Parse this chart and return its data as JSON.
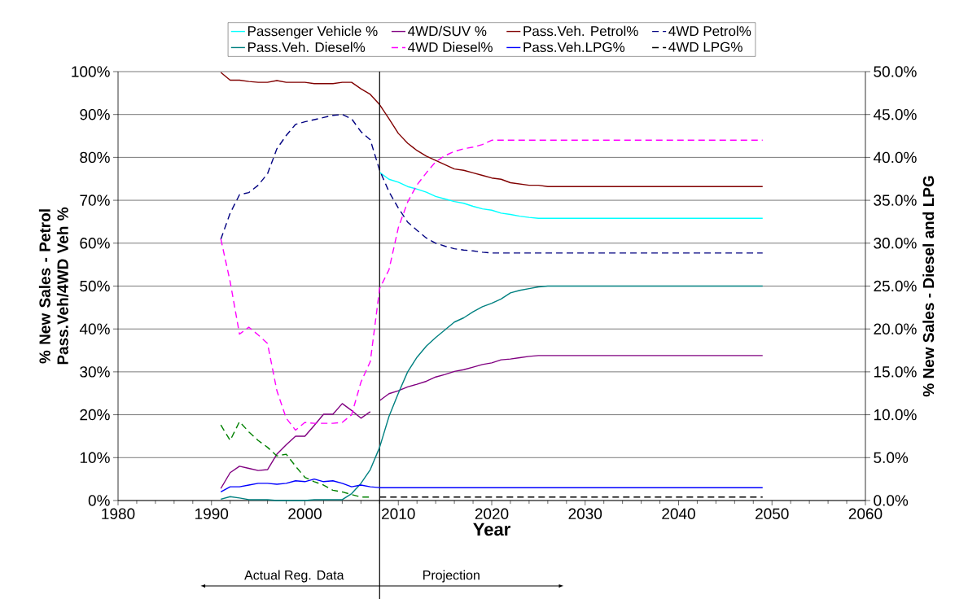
{
  "chart_data": {
    "type": "line",
    "xlabel": "Year",
    "ylabel": "% New Sales - Petrol Pass.Veh/4WD Veh %",
    "y2label": "% New Sales - Diesel and LPG",
    "xlim": [
      1980,
      2060
    ],
    "xticks": [
      1980,
      1990,
      2000,
      2010,
      2020,
      2030,
      2040,
      2050,
      2060
    ],
    "ylim": [
      0,
      100
    ],
    "yticks": [
      {
        "value": 0,
        "label": "0%"
      },
      {
        "value": 10,
        "label": "10%"
      },
      {
        "value": 20,
        "label": "20%"
      },
      {
        "value": 30,
        "label": "30%"
      },
      {
        "value": 40,
        "label": "40%"
      },
      {
        "value": 50,
        "label": "50%"
      },
      {
        "value": 60,
        "label": "60%"
      },
      {
        "value": 70,
        "label": "70%"
      },
      {
        "value": 80,
        "label": "80%"
      },
      {
        "value": 90,
        "label": "90%"
      },
      {
        "value": 100,
        "label": "100%"
      }
    ],
    "y2lim": [
      0,
      50
    ],
    "y2ticks": [
      {
        "value": 0,
        "label": "0.0%"
      },
      {
        "value": 5,
        "label": "5.0%"
      },
      {
        "value": 10,
        "label": "10.0%"
      },
      {
        "value": 15,
        "label": "15.0%"
      },
      {
        "value": 20,
        "label": "20.0%"
      },
      {
        "value": 25,
        "label": "25.0%"
      },
      {
        "value": 30,
        "label": "30.0%"
      },
      {
        "value": 35,
        "label": "35.0%"
      },
      {
        "value": 40,
        "label": "40.0%"
      },
      {
        "value": 45,
        "label": "45.0%"
      },
      {
        "value": 50,
        "label": "50.0%"
      }
    ],
    "grid": "y",
    "legend": "top",
    "marker": "none",
    "ref_lines": [
      {
        "axis": "x",
        "value": 2008,
        "color": "#000000"
      }
    ],
    "annotations": [
      "Actual Reg. Data",
      "Projection"
    ],
    "series": [
      {
        "name": "Passenger Vehicle %",
        "color": "#00ffff",
        "x": [
          2008,
          2009,
          2010,
          2011,
          2012,
          2013,
          2014,
          2015,
          2016,
          2017,
          2018,
          2019,
          2020,
          2021,
          2022,
          2023,
          2024,
          2025,
          2049
        ],
        "values": [
          76.5,
          74.9,
          74.2,
          73.2,
          72.6,
          71.9,
          70.9,
          70.3,
          69.7,
          69.3,
          68.6,
          68.0,
          67.7,
          67.0,
          66.7,
          66.3,
          66.0,
          65.8,
          65.8
        ]
      },
      {
        "name": "4WD/SUV %",
        "color": "#800080",
        "x": [
          2008,
          2009,
          2010,
          2011,
          2012,
          2013,
          2014,
          2015,
          2016,
          2017,
          2018,
          2019,
          2020,
          2021,
          2022,
          2023,
          2024,
          2025,
          2049
        ],
        "values": [
          23.3,
          24.9,
          25.6,
          26.5,
          27.1,
          27.8,
          28.8,
          29.4,
          30.1,
          30.5,
          31.1,
          31.7,
          32.1,
          32.8,
          33.0,
          33.3,
          33.6,
          33.8,
          33.8
        ]
      },
      {
        "name": "Pass.Veh. Petrol%",
        "color": "#800000",
        "x": [
          1991,
          1992,
          1993,
          1994,
          1995,
          1996,
          1997,
          1998,
          1999,
          2000,
          2001,
          2002,
          2003,
          2004,
          2005,
          2006,
          2007,
          2008,
          2009,
          2010,
          2011,
          2012,
          2013,
          2014,
          2015,
          2016,
          2017,
          2018,
          2019,
          2020,
          2021,
          2022,
          2023,
          2024,
          2025,
          2026,
          2049
        ],
        "values": [
          99.8,
          98.0,
          98.0,
          97.7,
          97.5,
          97.5,
          97.9,
          97.5,
          97.5,
          97.5,
          97.2,
          97.2,
          97.2,
          97.5,
          97.5,
          96.0,
          94.7,
          92.3,
          89.0,
          85.6,
          83.3,
          81.6,
          80.3,
          79.3,
          78.3,
          77.3,
          77.0,
          76.4,
          75.8,
          75.2,
          74.9,
          74.1,
          73.8,
          73.5,
          73.5,
          73.2,
          73.2
        ]
      },
      {
        "name": "4WD Petrol%",
        "color": "#000080",
        "line_style": "dashed",
        "x": [
          1991,
          1992,
          1993,
          1994,
          1995,
          1996,
          1997,
          1998,
          1999,
          2000,
          2001,
          2002,
          2003,
          2004,
          2005,
          2006,
          2007,
          2008,
          2009,
          2010,
          2011,
          2012,
          2013,
          2014,
          2015,
          2016,
          2017,
          2018,
          2019,
          2020,
          2049
        ],
        "values": [
          60.9,
          67.0,
          71.3,
          71.8,
          73.5,
          76.2,
          82.0,
          85.1,
          87.7,
          88.3,
          88.8,
          89.3,
          89.8,
          90.0,
          89.0,
          86.0,
          84.1,
          77.0,
          72.0,
          68.2,
          64.9,
          63.0,
          61.2,
          60.0,
          59.3,
          58.7,
          58.4,
          58.2,
          57.9,
          57.7,
          57.7
        ]
      },
      {
        "name": "Pass.Veh. Diesel%",
        "color": "#008080",
        "axis": "y2",
        "x": [
          1991,
          1992,
          1993,
          1994,
          1995,
          1996,
          1997,
          1998,
          1999,
          2000,
          2001,
          2002,
          2003,
          2004,
          2005,
          2006,
          2007,
          2008,
          2009,
          2010,
          2011,
          2012,
          2013,
          2014,
          2015,
          2016,
          2017,
          2018,
          2019,
          2020,
          2021,
          2022,
          2023,
          2024,
          2025,
          2026,
          2049
        ],
        "values": [
          0.15,
          0.45,
          0.3,
          0.1,
          0.1,
          0.1,
          0,
          0,
          0,
          0,
          0.1,
          0.1,
          0.1,
          0.1,
          0.8,
          2.0,
          3.6,
          6.2,
          9.8,
          12.5,
          15.0,
          16.7,
          18.0,
          19.0,
          19.9,
          20.8,
          21.3,
          22.0,
          22.6,
          23.0,
          23.5,
          24.2,
          24.5,
          24.7,
          24.9,
          25.0,
          25.0
        ]
      },
      {
        "name": "4WD Diesel%",
        "color": "#ff00ff",
        "line_style": "dashed",
        "axis": "y2",
        "x": [
          1991,
          1992,
          1993,
          1994,
          1995,
          1996,
          1997,
          1998,
          1999,
          2000,
          2001,
          2002,
          2003,
          2004,
          2005,
          2006,
          2007,
          2008,
          2009,
          2010,
          2011,
          2012,
          2013,
          2014,
          2015,
          2016,
          2017,
          2018,
          2019,
          2020,
          2049
        ],
        "values": [
          30.5,
          25.5,
          19.4,
          20.2,
          19.3,
          18.3,
          12.8,
          9.6,
          8.2,
          9.1,
          9.0,
          9.0,
          9.0,
          9.1,
          10.0,
          13.8,
          16.2,
          24.7,
          26.9,
          31.8,
          34.8,
          36.8,
          38.2,
          39.5,
          40.2,
          40.7,
          41.0,
          41.2,
          41.5,
          42.0,
          42.0
        ]
      },
      {
        "name": "Pass.Veh.LPG%",
        "color": "#0000ff",
        "axis": "y2",
        "x": [
          1991,
          1992,
          1993,
          1994,
          1995,
          1996,
          1997,
          1998,
          1999,
          2000,
          2001,
          2002,
          2003,
          2004,
          2005,
          2006,
          2007,
          2008,
          2049
        ],
        "values": [
          1.0,
          1.6,
          1.6,
          1.8,
          2.0,
          2.0,
          1.9,
          2.0,
          2.3,
          2.2,
          2.5,
          2.2,
          2.3,
          2.0,
          1.6,
          1.8,
          1.6,
          1.5,
          1.5
        ]
      },
      {
        "name": "4WD LPG%",
        "color": "#000000",
        "line_style": "dashed",
        "axis": "y2",
        "x": [
          2008,
          2049
        ],
        "values": [
          0.4,
          0.4
        ]
      },
      {
        "color": "#800080",
        "x": [
          1991,
          1992,
          1993,
          1994,
          1995,
          1996,
          1997,
          1998,
          1999,
          2000,
          2001,
          2002,
          2003,
          2004,
          2005,
          2006,
          2007
        ],
        "values": [
          2.8,
          6.5,
          8.0,
          7.5,
          7.0,
          7.2,
          10.8,
          13.0,
          15.0,
          15.0,
          17.5,
          20.1,
          20.1,
          22.6,
          21.0,
          19.2,
          20.7
        ]
      },
      {
        "color": "#008000",
        "line_style": "dashed",
        "axis": "y2",
        "x": [
          1991,
          1992,
          1993,
          1994,
          1995,
          1996,
          1997,
          1998,
          1999,
          2000,
          2001,
          2002,
          2003,
          2004,
          2005,
          2006,
          2007
        ],
        "values": [
          8.8,
          7.0,
          9.2,
          8.0,
          7.0,
          6.2,
          5.2,
          5.4,
          4.0,
          2.7,
          2.2,
          1.8,
          1.2,
          1.0,
          0.7,
          0.4,
          0.4
        ]
      }
    ]
  }
}
